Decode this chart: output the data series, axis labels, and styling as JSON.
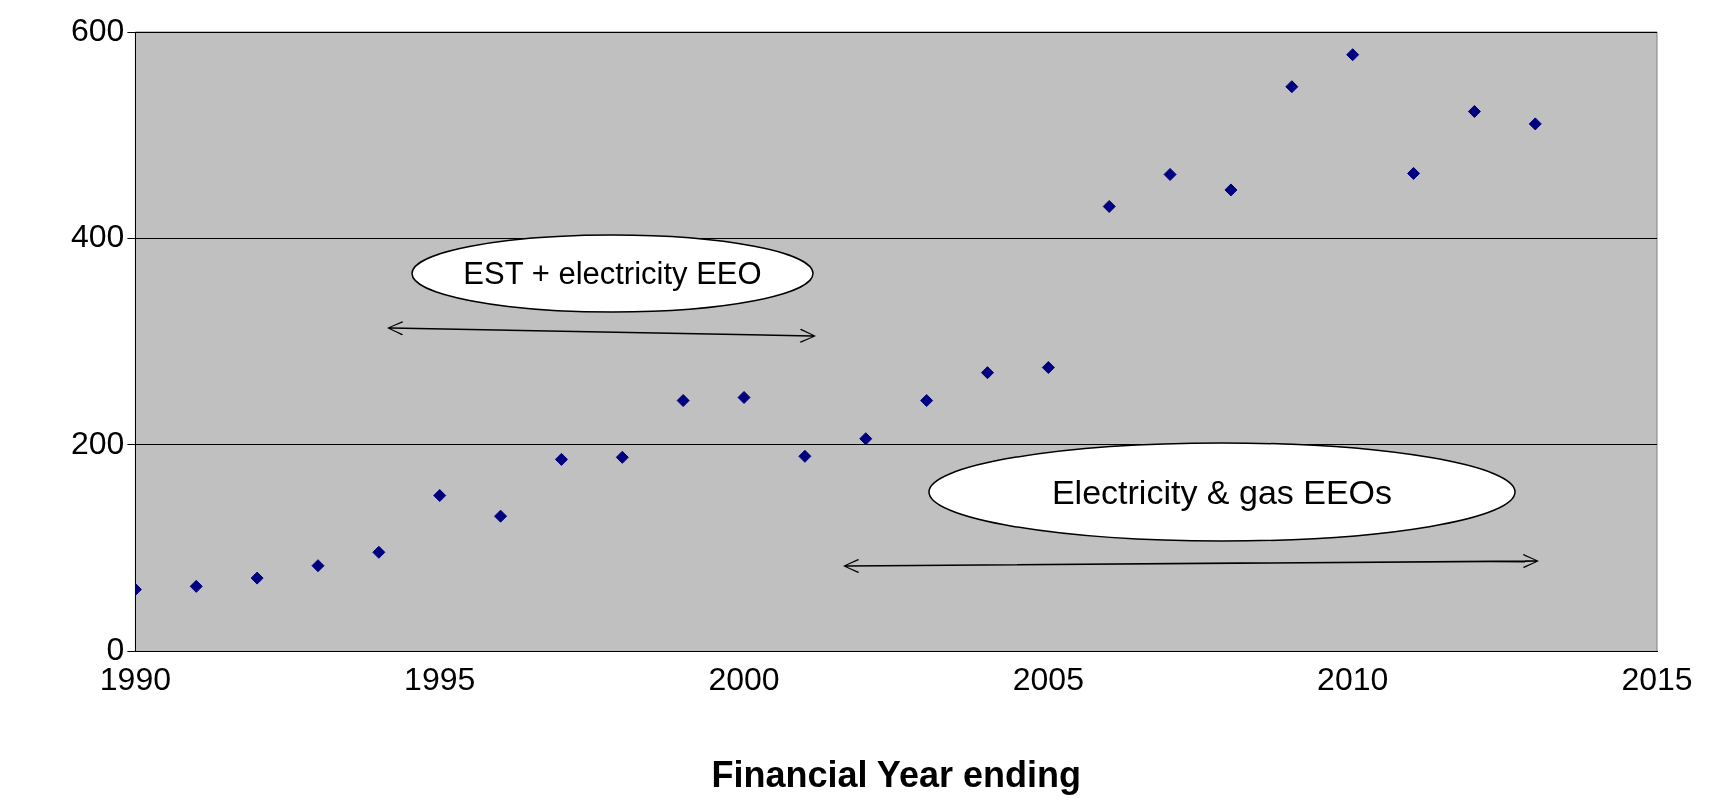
{
  "chart_data": {
    "type": "scatter",
    "xlabel": "Financial Year ending",
    "x": [
      1990,
      1991,
      1992,
      1993,
      1994,
      1995,
      1996,
      1997,
      1998,
      1999,
      2000,
      2001,
      2002,
      2003,
      2004,
      2005,
      2006,
      2007,
      2008,
      2009,
      2010,
      2011,
      2012,
      2013
    ],
    "values": [
      60,
      63,
      71,
      83,
      96,
      151,
      131,
      186,
      188,
      243,
      246,
      189,
      206,
      243,
      270,
      275,
      431,
      462,
      447,
      547,
      578,
      463,
      523,
      511
    ],
    "color": "#000080",
    "marker": "diamond",
    "grid": "y",
    "xlim": [
      1990,
      2015
    ],
    "xticks": [
      1990,
      1995,
      2000,
      2005,
      2010,
      2015
    ],
    "ylim": [
      0,
      600
    ],
    "yticks": [
      0,
      200,
      400,
      600
    ],
    "annotations": [
      "EST + electricity EEO",
      "Electricity & gas EEOs"
    ]
  }
}
